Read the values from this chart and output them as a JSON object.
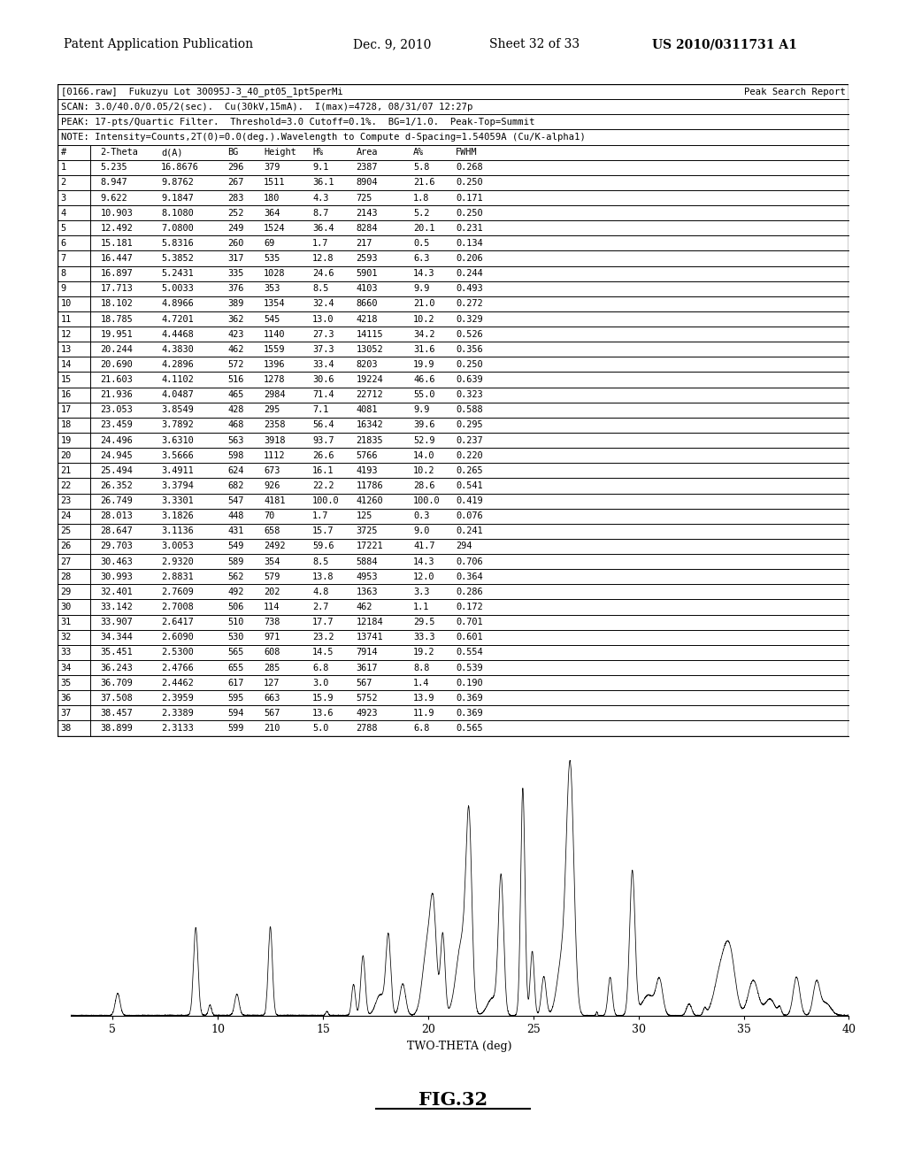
{
  "header_line1_left": "[0166.raw]",
  "header_line1_mid": "Fukuzyu Lot 30095J-3_40_pt05_1pt5perMi",
  "header_line1_right": "Peak Search Report",
  "header_line2": "SCAN: 3.0/40.0/0.05/2(sec).  Cu(30kV,15mA).  I(max)=4728, 08/31/07 12:27p",
  "header_line3": "PEAK: 17-pts/Quartic Filter.  Threshold=3.0 Cutoff=0.1%.  BG=1/1.0.  Peak-Top=Summit",
  "header_line4": "NOTE: Intensity=Counts,2T(0)=0.0(deg.).Wavelength to Compute d-Spacing=1.54059A (Cu/K-alpha1)",
  "col_headers": [
    "#",
    "2-Theta",
    "d(A)",
    "BG",
    "Height",
    "H%",
    "Area",
    "A%",
    "FWHM"
  ],
  "table_data": [
    [
      1,
      5.235,
      16.8676,
      296,
      379,
      9.1,
      2387,
      5.8,
      "0.268"
    ],
    [
      2,
      8.947,
      9.8762,
      267,
      1511,
      36.1,
      8904,
      21.6,
      "0.250"
    ],
    [
      3,
      9.622,
      9.1847,
      283,
      180,
      4.3,
      725,
      1.8,
      "0.171"
    ],
    [
      4,
      10.903,
      8.108,
      252,
      364,
      8.7,
      2143,
      5.2,
      "0.250"
    ],
    [
      5,
      12.492,
      7.08,
      249,
      1524,
      36.4,
      8284,
      20.1,
      "0.231"
    ],
    [
      6,
      15.181,
      5.8316,
      260,
      69,
      1.7,
      217,
      0.5,
      "0.134"
    ],
    [
      7,
      16.447,
      5.3852,
      317,
      535,
      12.8,
      2593,
      6.3,
      "0.206"
    ],
    [
      8,
      16.897,
      5.2431,
      335,
      1028,
      24.6,
      5901,
      14.3,
      "0.244"
    ],
    [
      9,
      17.713,
      5.0033,
      376,
      353,
      8.5,
      4103,
      9.9,
      "0.493"
    ],
    [
      10,
      18.102,
      4.8966,
      389,
      1354,
      32.4,
      8660,
      21.0,
      "0.272"
    ],
    [
      11,
      18.785,
      4.7201,
      362,
      545,
      13.0,
      4218,
      10.2,
      "0.329"
    ],
    [
      12,
      19.951,
      4.4468,
      423,
      1140,
      27.3,
      14115,
      34.2,
      "0.526"
    ],
    [
      13,
      20.244,
      4.383,
      462,
      1559,
      37.3,
      13052,
      31.6,
      "0.356"
    ],
    [
      14,
      20.69,
      4.2896,
      572,
      1396,
      33.4,
      8203,
      19.9,
      "0.250"
    ],
    [
      15,
      21.603,
      4.1102,
      516,
      1278,
      30.6,
      19224,
      46.6,
      "0.639"
    ],
    [
      16,
      21.936,
      4.0487,
      465,
      2984,
      71.4,
      22712,
      55.0,
      "0.323"
    ],
    [
      17,
      23.053,
      3.8549,
      428,
      295,
      7.1,
      4081,
      9.9,
      "0.588"
    ],
    [
      18,
      23.459,
      3.7892,
      468,
      2358,
      56.4,
      16342,
      39.6,
      "0.295"
    ],
    [
      19,
      24.496,
      3.631,
      563,
      3918,
      93.7,
      21835,
      52.9,
      "0.237"
    ],
    [
      20,
      24.945,
      3.5666,
      598,
      1112,
      26.6,
      5766,
      14.0,
      "0.220"
    ],
    [
      21,
      25.494,
      3.4911,
      624,
      673,
      16.1,
      4193,
      10.2,
      "0.265"
    ],
    [
      22,
      26.352,
      3.3794,
      682,
      926,
      22.2,
      11786,
      28.6,
      "0.541"
    ],
    [
      23,
      26.749,
      3.3301,
      547,
      4181,
      100.0,
      41260,
      100.0,
      "0.419"
    ],
    [
      24,
      28.013,
      3.1826,
      448,
      70,
      1.7,
      125,
      0.3,
      "0.076"
    ],
    [
      25,
      28.647,
      3.1136,
      431,
      658,
      15.7,
      3725,
      9.0,
      "0.241"
    ],
    [
      26,
      29.703,
      3.0053,
      549,
      2492,
      59.6,
      17221,
      41.7,
      "294"
    ],
    [
      27,
      30.463,
      2.932,
      589,
      354,
      8.5,
      5884,
      14.3,
      "0.706"
    ],
    [
      28,
      30.993,
      2.8831,
      562,
      579,
      13.8,
      4953,
      12.0,
      "0.364"
    ],
    [
      29,
      32.401,
      2.7609,
      492,
      202,
      4.8,
      1363,
      3.3,
      "0.286"
    ],
    [
      30,
      33.142,
      2.7008,
      506,
      114,
      2.7,
      462,
      1.1,
      "0.172"
    ],
    [
      31,
      33.907,
      2.6417,
      510,
      738,
      17.7,
      12184,
      29.5,
      "0.701"
    ],
    [
      32,
      34.344,
      2.609,
      530,
      971,
      23.2,
      13741,
      33.3,
      "0.601"
    ],
    [
      33,
      35.451,
      2.53,
      565,
      608,
      14.5,
      7914,
      19.2,
      "0.554"
    ],
    [
      34,
      36.243,
      2.4766,
      655,
      285,
      6.8,
      3617,
      8.8,
      "0.539"
    ],
    [
      35,
      36.709,
      2.4462,
      617,
      127,
      3.0,
      567,
      1.4,
      "0.190"
    ],
    [
      36,
      37.508,
      2.3959,
      595,
      663,
      15.9,
      5752,
      13.9,
      "0.369"
    ],
    [
      37,
      38.457,
      2.3389,
      594,
      567,
      13.6,
      4923,
      11.9,
      "0.369"
    ],
    [
      38,
      38.899,
      2.3133,
      599,
      210,
      5.0,
      2788,
      6.8,
      "0.565"
    ]
  ],
  "fig_label": "FIG.32",
  "xlabel": "TWO-THETA (deg)",
  "xmin": 3.0,
  "xmax": 40.0,
  "xticks": [
    5,
    10,
    15,
    20,
    25,
    30,
    35,
    40
  ]
}
